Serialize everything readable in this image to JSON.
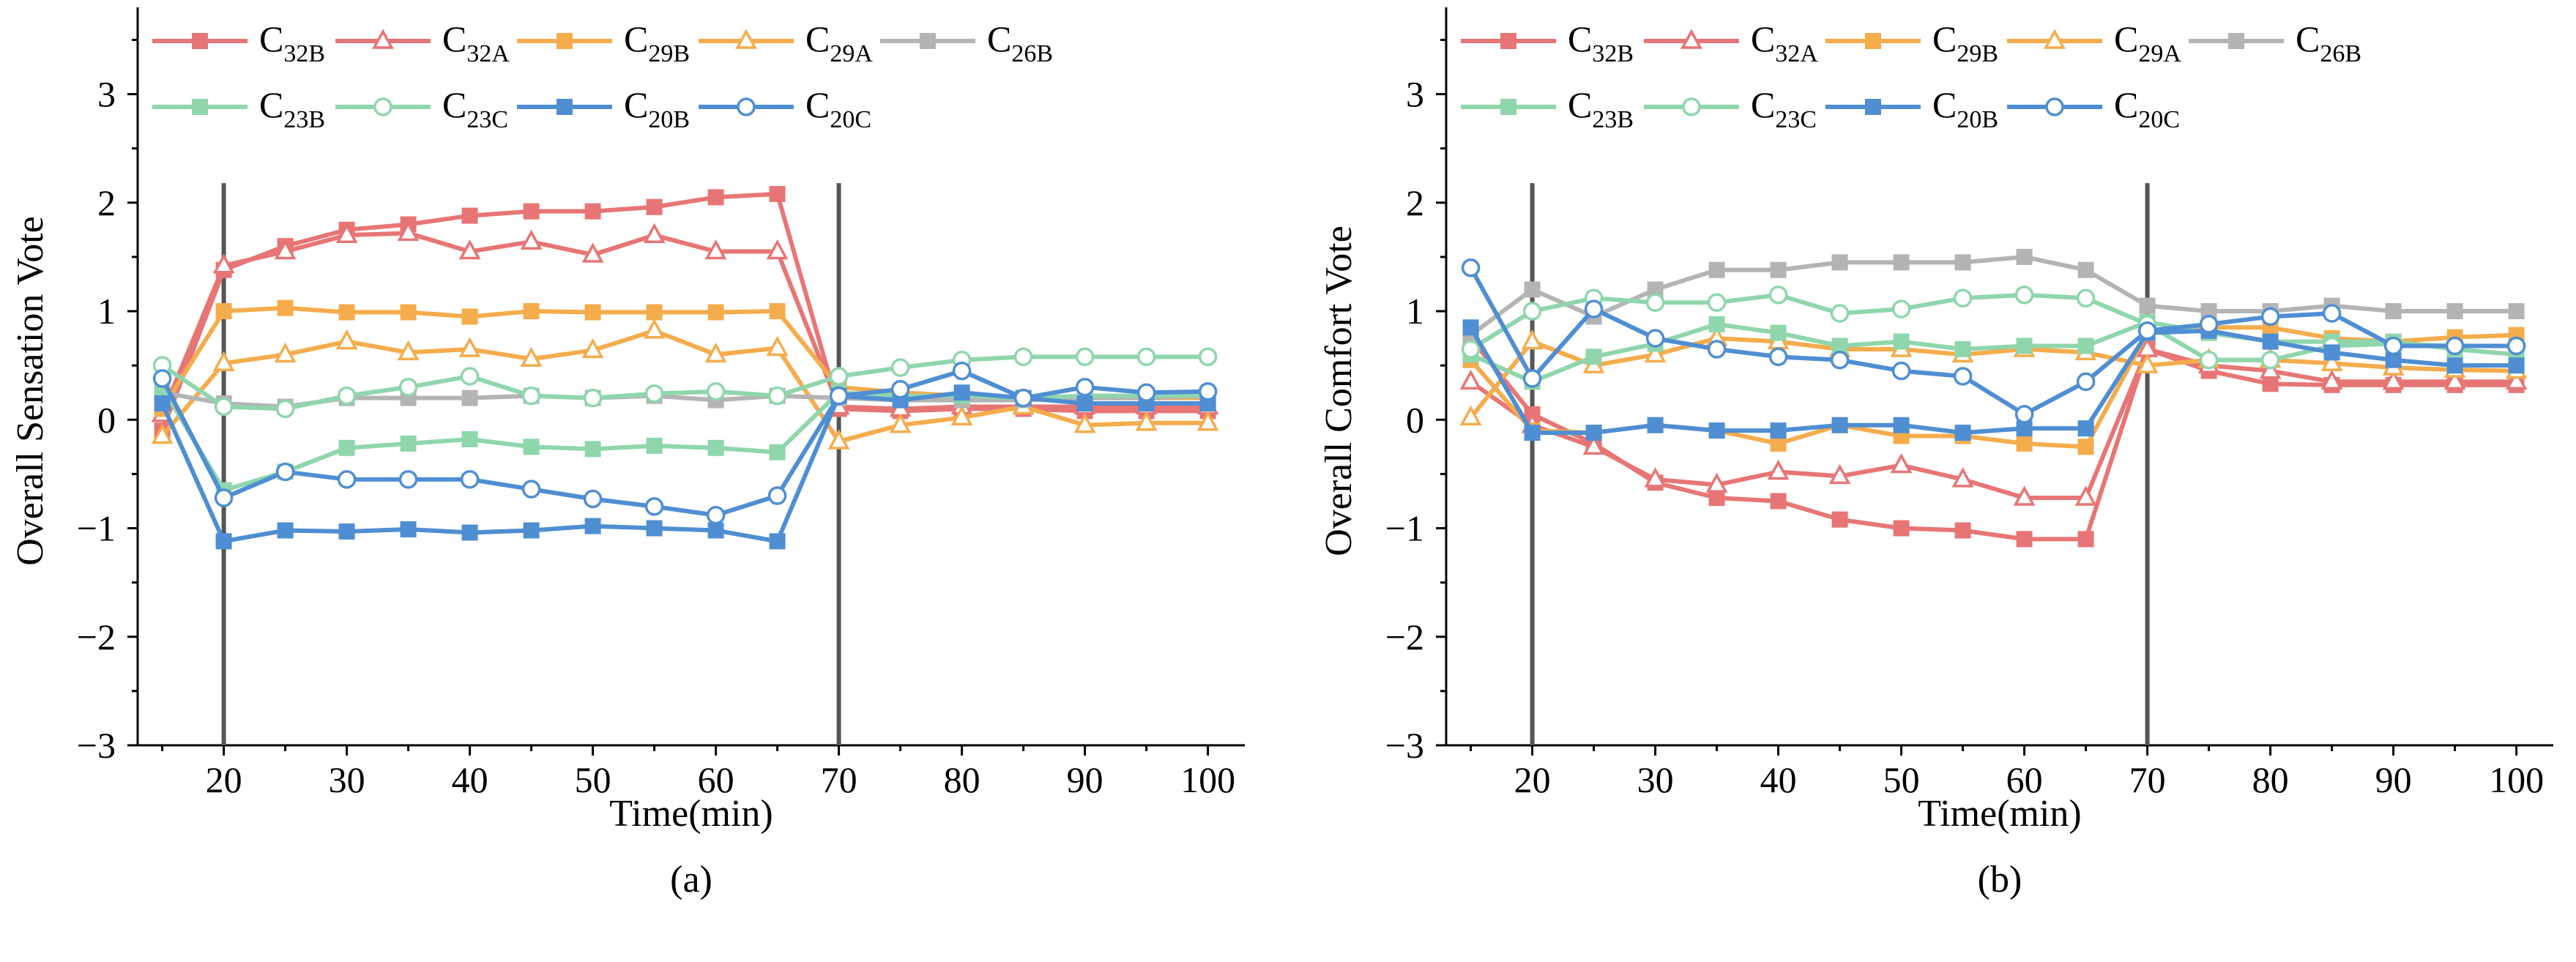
{
  "figure": {
    "panels": [
      {
        "id": "a",
        "label": "(a)"
      },
      {
        "id": "b",
        "label": "(b)"
      }
    ]
  },
  "chart_data": [
    {
      "type": "line",
      "panel_label": "(a)",
      "title": "",
      "xlabel": "Time(min)",
      "ylabel": "Overall Sensation Vote",
      "xlim": [
        13,
        103
      ],
      "ylim": [
        -3,
        3.8
      ],
      "xticks": [
        20,
        30,
        40,
        50,
        60,
        70,
        80,
        90,
        100
      ],
      "yticks": [
        -3,
        -2,
        -1,
        0,
        1,
        2,
        3
      ],
      "ytick_labels": [
        "−3",
        "−2",
        "−1",
        "0",
        "1",
        "2",
        "3"
      ],
      "reference_lines_x": [
        20,
        70
      ],
      "legend_placement": "top",
      "x": [
        15,
        20,
        25,
        30,
        35,
        40,
        45,
        50,
        55,
        60,
        65,
        70,
        75,
        80,
        85,
        90,
        95,
        100
      ],
      "series": [
        {
          "name": "C",
          "sub": "32B",
          "color": "#E87575",
          "marker": "filled-square",
          "values": [
            -0.1,
            1.38,
            1.6,
            1.75,
            1.8,
            1.88,
            1.92,
            1.92,
            1.96,
            2.05,
            2.08,
            0.1,
            0.08,
            0.1,
            0.1,
            0.08,
            0.08,
            0.08
          ]
        },
        {
          "name": "C",
          "sub": "32A",
          "color": "#E87575",
          "marker": "open-triangle",
          "values": [
            0.05,
            1.42,
            1.55,
            1.7,
            1.72,
            1.55,
            1.64,
            1.52,
            1.7,
            1.55,
            1.55,
            0.12,
            0.1,
            0.12,
            0.12,
            0.12,
            0.12,
            0.12
          ]
        },
        {
          "name": "C",
          "sub": "29B",
          "color": "#F5AC4C",
          "marker": "filled-square",
          "values": [
            0.1,
            1.0,
            1.03,
            0.99,
            0.99,
            0.95,
            1.0,
            0.99,
            0.99,
            0.99,
            1.0,
            0.3,
            0.25,
            0.22,
            0.2,
            0.2,
            0.2,
            0.2
          ]
        },
        {
          "name": "C",
          "sub": "29A",
          "color": "#F5AC4C",
          "marker": "open-triangle",
          "values": [
            -0.15,
            0.52,
            0.6,
            0.72,
            0.62,
            0.65,
            0.56,
            0.64,
            0.82,
            0.6,
            0.66,
            -0.2,
            -0.05,
            0.02,
            0.12,
            -0.05,
            -0.03,
            -0.03
          ]
        },
        {
          "name": "C",
          "sub": "26B",
          "color": "#B4B4B4",
          "marker": "filled-square",
          "values": [
            0.25,
            0.15,
            0.12,
            0.2,
            0.2,
            0.2,
            0.22,
            0.2,
            0.22,
            0.18,
            0.22,
            0.2,
            0.18,
            0.18,
            0.18,
            0.2,
            0.2,
            0.22
          ]
        },
        {
          "name": "C",
          "sub": "23B",
          "color": "#8FD6AC",
          "marker": "filled-square",
          "values": [
            0.3,
            -0.65,
            -0.48,
            -0.26,
            -0.22,
            -0.18,
            -0.25,
            -0.27,
            -0.24,
            -0.26,
            -0.3,
            0.25,
            0.22,
            0.22,
            0.2,
            0.22,
            0.22,
            0.22
          ]
        },
        {
          "name": "C",
          "sub": "23C",
          "color": "#8FD6AC",
          "marker": "open-circle",
          "values": [
            0.5,
            0.12,
            0.1,
            0.22,
            0.3,
            0.4,
            0.22,
            0.2,
            0.24,
            0.26,
            0.22,
            0.4,
            0.48,
            0.55,
            0.58,
            0.58,
            0.58,
            0.58
          ]
        },
        {
          "name": "C",
          "sub": "20B",
          "color": "#4F8ED3",
          "marker": "filled-square",
          "values": [
            0.15,
            -1.12,
            -1.02,
            -1.03,
            -1.01,
            -1.04,
            -1.02,
            -0.98,
            -1.0,
            -1.02,
            -1.12,
            0.22,
            0.18,
            0.25,
            0.2,
            0.15,
            0.15,
            0.15
          ]
        },
        {
          "name": "C",
          "sub": "20C",
          "color": "#4F8ED3",
          "marker": "open-circle",
          "values": [
            0.38,
            -0.72,
            -0.48,
            -0.55,
            -0.55,
            -0.55,
            -0.64,
            -0.73,
            -0.8,
            -0.88,
            -0.7,
            0.22,
            0.28,
            0.45,
            0.2,
            0.3,
            0.25,
            0.26
          ]
        }
      ]
    },
    {
      "type": "line",
      "panel_label": "(b)",
      "title": "",
      "xlabel": "Time(min)",
      "ylabel": "Overall Comfort Vote",
      "xlim": [
        13,
        103
      ],
      "ylim": [
        -3,
        3.8
      ],
      "xticks": [
        20,
        30,
        40,
        50,
        60,
        70,
        80,
        90,
        100
      ],
      "yticks": [
        -3,
        -2,
        -1,
        0,
        1,
        2,
        3
      ],
      "ytick_labels": [
        "−3",
        "−2",
        "−1",
        "0",
        "1",
        "2",
        "3"
      ],
      "reference_lines_x": [
        20,
        70
      ],
      "legend_placement": "top",
      "x": [
        15,
        20,
        25,
        30,
        35,
        40,
        45,
        50,
        55,
        60,
        65,
        70,
        75,
        80,
        85,
        90,
        95,
        100
      ],
      "series": [
        {
          "name": "C",
          "sub": "32B",
          "color": "#E87575",
          "marker": "filled-square",
          "values": [
            0.75,
            0.05,
            -0.22,
            -0.58,
            -0.72,
            -0.75,
            -0.92,
            -1.0,
            -1.02,
            -1.1,
            -1.1,
            0.65,
            0.45,
            0.33,
            0.32,
            0.32,
            0.32,
            0.32
          ]
        },
        {
          "name": "C",
          "sub": "32A",
          "color": "#E87575",
          "marker": "open-triangle",
          "values": [
            0.35,
            -0.05,
            -0.25,
            -0.55,
            -0.6,
            -0.48,
            -0.52,
            -0.42,
            -0.55,
            -0.72,
            -0.72,
            0.65,
            0.5,
            0.45,
            0.35,
            0.35,
            0.35,
            0.35
          ]
        },
        {
          "name": "C",
          "sub": "29B",
          "color": "#F5AC4C",
          "marker": "filled-square",
          "values": [
            0.55,
            -0.1,
            -0.12,
            -0.05,
            -0.1,
            -0.22,
            -0.05,
            -0.15,
            -0.15,
            -0.22,
            -0.25,
            0.8,
            0.85,
            0.85,
            0.75,
            0.72,
            0.76,
            0.78
          ]
        },
        {
          "name": "C",
          "sub": "29A",
          "color": "#F5AC4C",
          "marker": "open-triangle",
          "values": [
            0.02,
            0.72,
            0.5,
            0.6,
            0.75,
            0.72,
            0.65,
            0.65,
            0.6,
            0.65,
            0.62,
            0.5,
            0.55,
            0.55,
            0.52,
            0.48,
            0.46,
            0.45
          ]
        },
        {
          "name": "C",
          "sub": "26B",
          "color": "#B4B4B4",
          "marker": "filled-square",
          "values": [
            0.78,
            1.2,
            0.95,
            1.2,
            1.38,
            1.38,
            1.45,
            1.45,
            1.45,
            1.5,
            1.38,
            1.05,
            1.0,
            1.0,
            1.05,
            1.0,
            1.0,
            1.0
          ]
        },
        {
          "name": "C",
          "sub": "23B",
          "color": "#8FD6AC",
          "marker": "filled-square",
          "values": [
            0.6,
            0.35,
            0.58,
            0.7,
            0.88,
            0.8,
            0.68,
            0.72,
            0.65,
            0.68,
            0.68,
            0.9,
            0.8,
            0.72,
            0.72,
            0.72,
            0.65,
            0.6
          ]
        },
        {
          "name": "C",
          "sub": "23C",
          "color": "#8FD6AC",
          "marker": "open-circle",
          "values": [
            0.65,
            1.0,
            1.12,
            1.08,
            1.08,
            1.15,
            0.98,
            1.02,
            1.12,
            1.15,
            1.12,
            0.88,
            0.55,
            0.55,
            0.68,
            0.7,
            0.68,
            0.68
          ]
        },
        {
          "name": "C",
          "sub": "20B",
          "color": "#4F8ED3",
          "marker": "filled-square",
          "values": [
            0.85,
            -0.12,
            -0.12,
            -0.05,
            -0.1,
            -0.1,
            -0.05,
            -0.05,
            -0.12,
            -0.08,
            -0.08,
            0.8,
            0.82,
            0.72,
            0.62,
            0.55,
            0.5,
            0.5
          ]
        },
        {
          "name": "C",
          "sub": "20C",
          "color": "#4F8ED3",
          "marker": "open-circle",
          "values": [
            1.4,
            0.38,
            1.02,
            0.75,
            0.65,
            0.58,
            0.55,
            0.45,
            0.4,
            0.05,
            0.35,
            0.82,
            0.88,
            0.95,
            0.98,
            0.68,
            0.68,
            0.68
          ]
        }
      ]
    }
  ]
}
